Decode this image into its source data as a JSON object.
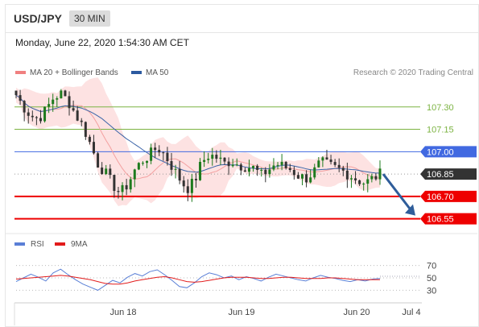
{
  "header": {
    "pair": "USD/JPY",
    "timeframe": "30 MIN"
  },
  "timestamp": "Monday, June 22, 2020 1:54:30 AM CET",
  "legend": [
    {
      "label": "MA 20 + Bollinger Bands",
      "color": "#f08080"
    },
    {
      "label": "MA 50",
      "color": "#2c5aa0"
    }
  ],
  "credit": "Research © 2020 Trading Central",
  "colors": {
    "candle_up": "#1e7b1e",
    "candle_down": "#333333",
    "bollinger_fill": "#fde2e2",
    "ma20": "#f3a0a0",
    "ma50": "#3a64a8",
    "green_level": "#7cb342",
    "blue_level": "#4169e1",
    "red_level": "#ee0000",
    "current": "#333333",
    "forecast_arrow": "#2f5d9a",
    "rsi": "#5a7fd6",
    "rsi_ma": "#e21b1b"
  },
  "chart_data": [
    {
      "type": "candlestick",
      "title": "USD/JPY",
      "timeframe": "30 MIN",
      "y_range": [
        106.44,
        107.45
      ],
      "x_ticks": [
        "Jun 18",
        "Jun 19",
        "Jun 20",
        "Jul 4"
      ],
      "close_path": [
        107.38,
        107.3,
        107.24,
        107.22,
        107.28,
        107.36,
        107.39,
        107.34,
        107.25,
        107.17,
        107.05,
        106.92,
        106.86,
        106.78,
        106.72,
        106.78,
        106.88,
        106.94,
        106.98,
        107.03,
        106.98,
        106.9,
        106.82,
        106.75,
        106.8,
        106.93,
        106.98,
        106.96,
        106.92,
        106.94,
        106.91,
        106.9,
        106.89,
        106.84,
        106.88,
        106.92,
        106.9,
        106.88,
        106.84,
        106.82,
        106.86,
        106.93,
        106.91,
        106.89,
        106.87,
        106.84,
        106.81,
        106.79,
        106.82,
        106.85
      ],
      "levels": [
        {
          "value": 107.3,
          "label": "107.30",
          "kind": "resistance"
        },
        {
          "value": 107.15,
          "label": "107.15",
          "kind": "resistance"
        },
        {
          "value": 107.0,
          "label": "107.00",
          "kind": "pivot"
        },
        {
          "value": 106.85,
          "label": "106.85",
          "kind": "current"
        },
        {
          "value": 106.7,
          "label": "106.70",
          "kind": "support"
        },
        {
          "value": 106.55,
          "label": "106.55",
          "kind": "support"
        }
      ],
      "forecast": {
        "from": 106.85,
        "to": 106.55
      }
    },
    {
      "type": "line",
      "title": "RSI",
      "y_range": [
        15,
        85
      ],
      "y_ticks": [
        70,
        50,
        30
      ],
      "series": [
        {
          "name": "RSI",
          "values": [
            44,
            50,
            56,
            51,
            45,
            58,
            64,
            55,
            47,
            40,
            35,
            30,
            38,
            46,
            42,
            51,
            57,
            53,
            60,
            63,
            55,
            46,
            36,
            34,
            42,
            52,
            58,
            55,
            50,
            53,
            47,
            52,
            49,
            45,
            51,
            56,
            53,
            50,
            47,
            45,
            50,
            54,
            51,
            49,
            46,
            44,
            47,
            45,
            48,
            49
          ]
        },
        {
          "name": "9MA",
          "values": [
            48,
            49,
            50,
            51,
            52,
            53,
            54,
            53,
            51,
            49,
            47,
            44,
            41,
            40,
            40,
            42,
            45,
            47,
            49,
            51,
            52,
            50,
            47,
            44,
            43,
            44,
            46,
            48,
            50,
            51,
            51,
            51,
            50,
            49,
            49,
            50,
            51,
            51,
            50,
            49,
            49,
            49,
            50,
            50,
            49,
            48,
            47,
            47,
            47,
            47
          ]
        }
      ]
    }
  ]
}
